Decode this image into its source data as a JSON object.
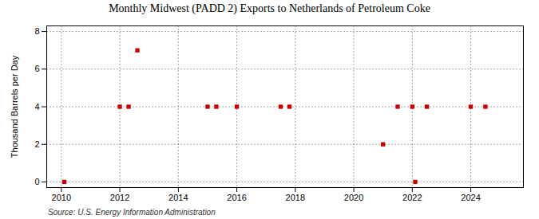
{
  "chart_data": {
    "type": "scatter",
    "title": "Monthly Midwest (PADD 2) Exports to Netherlands of Petroleum Coke",
    "y_label": "Thousand Barrels per Day",
    "source": "Source: U.S. Energy Information Administration",
    "x": [
      2010.1,
      2012.0,
      2012.3,
      2012.6,
      2015.0,
      2015.3,
      2016.0,
      2017.5,
      2017.8,
      2021.0,
      2021.5,
      2022.0,
      2022.1,
      2022.5,
      2024.0,
      2024.5
    ],
    "values": [
      0.0,
      4.0,
      4.0,
      7.0,
      4.0,
      4.0,
      4.0,
      4.0,
      4.0,
      2.0,
      4.0,
      4.0,
      0.0,
      4.0,
      4.0,
      4.0
    ],
    "color": "#cc0000",
    "marker": "square",
    "xlim": [
      2009.5,
      2025.8
    ],
    "xticks": [
      2010,
      2012,
      2014,
      2016,
      2018,
      2020,
      2022,
      2024
    ],
    "ylim": [
      -0.3,
      8.3
    ],
    "yticks": [
      0,
      2,
      4,
      6,
      8
    ],
    "grid": true
  }
}
